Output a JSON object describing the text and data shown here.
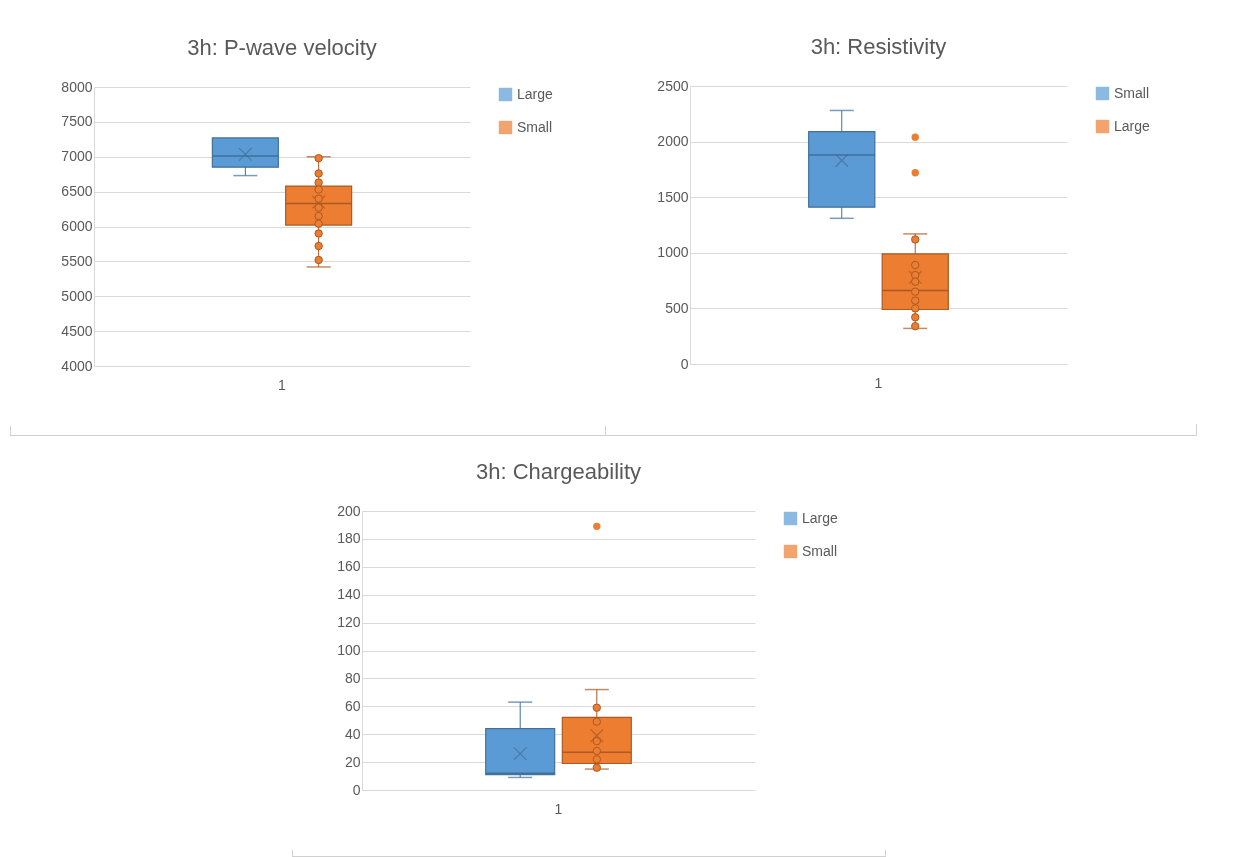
{
  "chart_data": [
    {
      "type": "box",
      "title": "3h: P-wave velocity",
      "categories": [
        "1"
      ],
      "ylim": [
        4000,
        8000
      ],
      "yticks": [
        4000,
        4500,
        5000,
        5500,
        6000,
        6500,
        7000,
        7500,
        8000
      ],
      "grid": "y",
      "legend": "right",
      "series": [
        {
          "name": "Large",
          "color": "#5b9bd5",
          "boxes": [
            {
              "low": 6730,
              "q1": 6850,
              "median": 7010,
              "q3": 7270,
              "high": 7270,
              "mean": 7035
            }
          ]
        },
        {
          "name": "Small",
          "color": "#ed7d31",
          "boxes": [
            {
              "low": 5420,
              "q1": 6020,
              "median": 6330,
              "q3": 6580,
              "high": 7000,
              "mean": 6350
            }
          ]
        },
        {
          "type": "scatter",
          "color": "#ed7d31",
          "x": [
            "1",
            "1",
            "1",
            "1",
            "1",
            "1",
            "1",
            "1",
            "1",
            "1",
            "1"
          ],
          "values": [
            6980,
            6760,
            6630,
            6530,
            6400,
            6270,
            6150,
            6040,
            5900,
            5720,
            5520
          ]
        }
      ]
    },
    {
      "type": "box",
      "title": "3h: Resistivity",
      "categories": [
        "1"
      ],
      "ylim": [
        0,
        2500
      ],
      "yticks": [
        0,
        500,
        1000,
        1500,
        2000,
        2500
      ],
      "grid": "y",
      "legend": "right",
      "series": [
        {
          "name": "Small",
          "color": "#5b9bd5",
          "boxes": [
            {
              "low": 1310,
              "q1": 1410,
              "median": 1880,
              "q3": 2090,
              "high": 2280,
              "mean": 1830
            }
          ]
        },
        {
          "name": "Large",
          "color": "#ed7d31",
          "boxes": [
            {
              "low": 320,
              "q1": 490,
              "median": 660,
              "q3": 990,
              "high": 1170,
              "mean": 780,
              "outliers": [
                2040,
                1720
              ]
            }
          ]
        },
        {
          "type": "scatter",
          "color": "#ed7d31",
          "x": [
            "1",
            "1",
            "1",
            "1",
            "1",
            "1",
            "1",
            "1",
            "1"
          ],
          "values": [
            1120,
            890,
            800,
            740,
            650,
            570,
            500,
            420,
            340
          ]
        }
      ]
    },
    {
      "type": "box",
      "title": "3h: Chargeability",
      "categories": [
        "1"
      ],
      "ylim": [
        0,
        200
      ],
      "yticks": [
        0,
        20,
        40,
        60,
        80,
        100,
        120,
        140,
        160,
        180,
        200
      ],
      "grid": "y",
      "legend": "right",
      "series": [
        {
          "name": "Large",
          "color": "#5b9bd5",
          "boxes": [
            {
              "low": 9,
              "q1": 11,
              "median": 12,
              "q3": 44,
              "high": 63,
              "mean": 26
            }
          ]
        },
        {
          "name": "Small",
          "color": "#ed7d31",
          "boxes": [
            {
              "low": 15,
              "q1": 19,
              "median": 27,
              "q3": 52,
              "high": 72,
              "mean": 39,
              "outliers": [
                189
              ]
            }
          ]
        },
        {
          "type": "scatter",
          "color": "#ed7d31",
          "x": [
            "1",
            "1",
            "1",
            "1",
            "1",
            "1"
          ],
          "values": [
            59,
            49,
            35,
            28,
            22,
            16
          ]
        }
      ]
    }
  ]
}
